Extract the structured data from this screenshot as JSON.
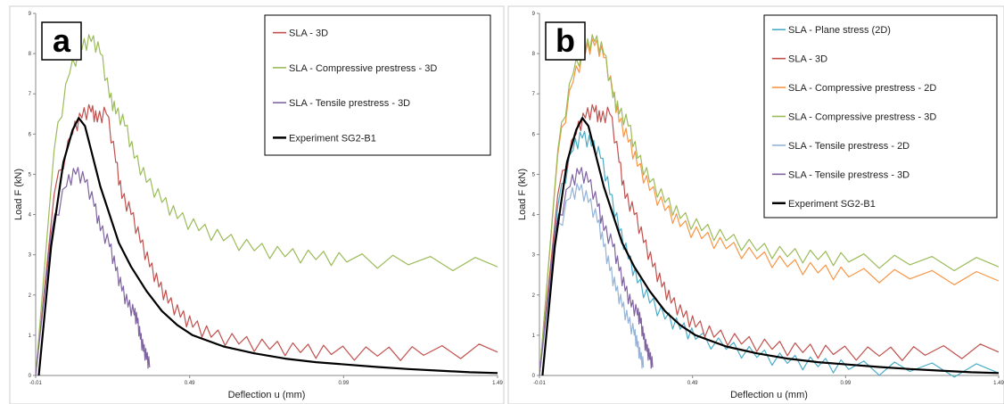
{
  "chart_data": [
    {
      "type": "line",
      "panel_label": "a",
      "xlabel": "Deflection u (mm)",
      "ylabel": "Load F (kN)",
      "xlim": [
        -0.01,
        1.49
      ],
      "ylim": [
        0,
        9
      ],
      "xticks": [
        "-0.01",
        "0.49",
        "0.99",
        "1.49"
      ],
      "yticks": [
        "0",
        "1",
        "2",
        "3",
        "4",
        "5",
        "6",
        "7",
        "8",
        "9"
      ],
      "legend_position": "top-right",
      "grid": false,
      "series": [
        {
          "name": "SLA - 3D",
          "color": "#c0504d",
          "points": [
            [
              -0.01,
              0
            ],
            [
              0.05,
              4.5
            ],
            [
              0.11,
              6.0
            ],
            [
              0.14,
              6.4
            ],
            [
              0.17,
              6.55
            ],
            [
              0.19,
              6.3
            ],
            [
              0.22,
              6.5
            ],
            [
              0.25,
              5.3
            ],
            [
              0.27,
              4.4
            ],
            [
              0.3,
              4.0
            ],
            [
              0.33,
              3.3
            ],
            [
              0.36,
              2.7
            ],
            [
              0.39,
              2.2
            ],
            [
              0.42,
              1.8
            ],
            [
              0.46,
              1.45
            ],
            [
              0.5,
              1.2
            ],
            [
              0.56,
              0.95
            ],
            [
              0.65,
              0.78
            ],
            [
              0.75,
              0.65
            ],
            [
              0.85,
              0.57
            ],
            [
              0.95,
              0.52
            ],
            [
              1.1,
              0.48
            ],
            [
              1.25,
              0.5
            ],
            [
              1.49,
              0.58
            ]
          ]
        },
        {
          "name": "SLA - Compressive prestress - 3D",
          "color": "#9bbb59",
          "points": [
            [
              -0.01,
              0
            ],
            [
              0.05,
              5.6
            ],
            [
              0.1,
              7.5
            ],
            [
              0.14,
              8.1
            ],
            [
              0.17,
              8.3
            ],
            [
              0.2,
              8.0
            ],
            [
              0.23,
              6.9
            ],
            [
              0.25,
              6.5
            ],
            [
              0.28,
              6.2
            ],
            [
              0.31,
              5.4
            ],
            [
              0.35,
              4.8
            ],
            [
              0.4,
              4.3
            ],
            [
              0.45,
              3.9
            ],
            [
              0.52,
              3.6
            ],
            [
              0.6,
              3.35
            ],
            [
              0.7,
              3.1
            ],
            [
              0.8,
              2.95
            ],
            [
              0.9,
              2.88
            ],
            [
              1.0,
              2.82
            ],
            [
              1.2,
              2.75
            ],
            [
              1.49,
              2.7
            ]
          ]
        },
        {
          "name": "SLA - Tensile prestress - 3D",
          "color": "#8064a2",
          "points": [
            [
              -0.01,
              0
            ],
            [
              0.04,
              3.5
            ],
            [
              0.09,
              4.7
            ],
            [
              0.12,
              5.0
            ],
            [
              0.15,
              4.8
            ],
            [
              0.18,
              4.2
            ],
            [
              0.2,
              3.6
            ],
            [
              0.23,
              3.2
            ],
            [
              0.25,
              2.6
            ],
            [
              0.27,
              2.1
            ],
            [
              0.29,
              1.7
            ],
            [
              0.31,
              1.5
            ],
            [
              0.32,
              1.3
            ],
            [
              0.33,
              0.9
            ],
            [
              0.34,
              0.6
            ],
            [
              0.35,
              0.4
            ],
            [
              0.36,
              0.2
            ]
          ]
        },
        {
          "name": "Experiment SG2-B1",
          "color": "#000000",
          "points": [
            [
              0.0,
              0
            ],
            [
              0.04,
              3.2
            ],
            [
              0.08,
              5.3
            ],
            [
              0.11,
              6.1
            ],
            [
              0.13,
              6.4
            ],
            [
              0.15,
              6.2
            ],
            [
              0.17,
              5.6
            ],
            [
              0.2,
              4.7
            ],
            [
              0.23,
              4.0
            ],
            [
              0.26,
              3.3
            ],
            [
              0.3,
              2.7
            ],
            [
              0.35,
              2.1
            ],
            [
              0.4,
              1.6
            ],
            [
              0.45,
              1.25
            ],
            [
              0.5,
              1.0
            ],
            [
              0.6,
              0.72
            ],
            [
              0.7,
              0.55
            ],
            [
              0.8,
              0.42
            ],
            [
              0.9,
              0.33
            ],
            [
              1.0,
              0.27
            ],
            [
              1.1,
              0.21
            ],
            [
              1.2,
              0.16
            ],
            [
              1.3,
              0.12
            ],
            [
              1.4,
              0.08
            ],
            [
              1.49,
              0.06
            ]
          ]
        }
      ]
    },
    {
      "type": "line",
      "panel_label": "b",
      "xlabel": "Deflection u (mm)",
      "ylabel": "Load F (kN)",
      "xlim": [
        -0.01,
        1.49
      ],
      "ylim": [
        0,
        9
      ],
      "xticks": [
        "-0.01",
        "0.49",
        "0.99",
        "1.49"
      ],
      "yticks": [
        "0",
        "1",
        "2",
        "3",
        "4",
        "5",
        "6",
        "7",
        "8",
        "9"
      ],
      "legend_position": "top-right",
      "grid": false,
      "series": [
        {
          "name": "SLA - Plane stress (2D)",
          "color": "#4bacc6",
          "points": [
            [
              -0.01,
              0
            ],
            [
              0.05,
              4.2
            ],
            [
              0.1,
              5.6
            ],
            [
              0.13,
              5.9
            ],
            [
              0.16,
              5.7
            ],
            [
              0.19,
              5.4
            ],
            [
              0.22,
              4.5
            ],
            [
              0.25,
              3.6
            ],
            [
              0.28,
              2.9
            ],
            [
              0.31,
              2.3
            ],
            [
              0.35,
              1.8
            ],
            [
              0.4,
              1.4
            ],
            [
              0.45,
              1.15
            ],
            [
              0.5,
              0.9
            ],
            [
              0.6,
              0.65
            ],
            [
              0.7,
              0.45
            ],
            [
              0.8,
              0.3
            ],
            [
              0.9,
              0.22
            ],
            [
              1.0,
              0.15
            ],
            [
              1.2,
              0.1
            ],
            [
              1.49,
              0.06
            ]
          ]
        },
        {
          "name": "SLA - 3D",
          "color": "#c0504d",
          "points": [
            [
              -0.01,
              0
            ],
            [
              0.05,
              4.5
            ],
            [
              0.11,
              6.0
            ],
            [
              0.14,
              6.4
            ],
            [
              0.17,
              6.55
            ],
            [
              0.19,
              6.3
            ],
            [
              0.22,
              6.5
            ],
            [
              0.25,
              5.3
            ],
            [
              0.27,
              4.4
            ],
            [
              0.3,
              4.0
            ],
            [
              0.33,
              3.3
            ],
            [
              0.36,
              2.7
            ],
            [
              0.39,
              2.2
            ],
            [
              0.42,
              1.8
            ],
            [
              0.46,
              1.45
            ],
            [
              0.5,
              1.2
            ],
            [
              0.56,
              0.95
            ],
            [
              0.65,
              0.78
            ],
            [
              0.75,
              0.65
            ],
            [
              0.85,
              0.57
            ],
            [
              0.95,
              0.52
            ],
            [
              1.1,
              0.48
            ],
            [
              1.25,
              0.5
            ],
            [
              1.49,
              0.58
            ]
          ]
        },
        {
          "name": "SLA - Compressive prestress - 2D",
          "color": "#f79646",
          "points": [
            [
              -0.01,
              0
            ],
            [
              0.05,
              5.5
            ],
            [
              0.1,
              7.3
            ],
            [
              0.14,
              8.0
            ],
            [
              0.17,
              8.2
            ],
            [
              0.2,
              7.9
            ],
            [
              0.23,
              7.0
            ],
            [
              0.25,
              6.3
            ],
            [
              0.28,
              5.8
            ],
            [
              0.31,
              5.2
            ],
            [
              0.35,
              4.6
            ],
            [
              0.4,
              4.1
            ],
            [
              0.45,
              3.7
            ],
            [
              0.52,
              3.4
            ],
            [
              0.6,
              3.15
            ],
            [
              0.7,
              2.9
            ],
            [
              0.8,
              2.7
            ],
            [
              0.9,
              2.55
            ],
            [
              1.0,
              2.45
            ],
            [
              1.2,
              2.4
            ],
            [
              1.49,
              2.35
            ]
          ]
        },
        {
          "name": "SLA - Compressive prestress - 3D",
          "color": "#9bbb59",
          "points": [
            [
              -0.01,
              0
            ],
            [
              0.05,
              5.6
            ],
            [
              0.1,
              7.5
            ],
            [
              0.14,
              8.1
            ],
            [
              0.17,
              8.3
            ],
            [
              0.2,
              8.0
            ],
            [
              0.23,
              6.9
            ],
            [
              0.25,
              6.5
            ],
            [
              0.28,
              6.2
            ],
            [
              0.31,
              5.4
            ],
            [
              0.35,
              4.8
            ],
            [
              0.4,
              4.3
            ],
            [
              0.45,
              3.9
            ],
            [
              0.52,
              3.6
            ],
            [
              0.6,
              3.35
            ],
            [
              0.7,
              3.1
            ],
            [
              0.8,
              2.95
            ],
            [
              0.9,
              2.88
            ],
            [
              1.0,
              2.82
            ],
            [
              1.2,
              2.75
            ],
            [
              1.49,
              2.7
            ]
          ]
        },
        {
          "name": "SLA - Tensile prestress - 2D",
          "color": "#95b3d7",
          "points": [
            [
              -0.01,
              0
            ],
            [
              0.04,
              3.3
            ],
            [
              0.09,
              4.4
            ],
            [
              0.12,
              4.6
            ],
            [
              0.15,
              4.3
            ],
            [
              0.18,
              3.8
            ],
            [
              0.2,
              3.2
            ],
            [
              0.22,
              2.6
            ],
            [
              0.24,
              2.1
            ],
            [
              0.26,
              1.7
            ],
            [
              0.28,
              1.3
            ],
            [
              0.3,
              1.0
            ],
            [
              0.31,
              0.7
            ],
            [
              0.32,
              0.4
            ],
            [
              0.33,
              0.2
            ]
          ]
        },
        {
          "name": "SLA - Tensile prestress - 3D",
          "color": "#8064a2",
          "points": [
            [
              -0.01,
              0
            ],
            [
              0.04,
              3.5
            ],
            [
              0.09,
              4.7
            ],
            [
              0.12,
              5.0
            ],
            [
              0.15,
              4.8
            ],
            [
              0.18,
              4.2
            ],
            [
              0.2,
              3.6
            ],
            [
              0.23,
              3.2
            ],
            [
              0.25,
              2.6
            ],
            [
              0.27,
              2.1
            ],
            [
              0.29,
              1.7
            ],
            [
              0.31,
              1.5
            ],
            [
              0.32,
              1.3
            ],
            [
              0.33,
              0.9
            ],
            [
              0.34,
              0.6
            ],
            [
              0.35,
              0.4
            ],
            [
              0.36,
              0.2
            ]
          ]
        },
        {
          "name": "Experiment SG2-B1",
          "color": "#000000",
          "points": [
            [
              0.0,
              0
            ],
            [
              0.04,
              3.2
            ],
            [
              0.08,
              5.3
            ],
            [
              0.11,
              6.1
            ],
            [
              0.13,
              6.4
            ],
            [
              0.15,
              6.2
            ],
            [
              0.17,
              5.6
            ],
            [
              0.2,
              4.7
            ],
            [
              0.23,
              4.0
            ],
            [
              0.26,
              3.3
            ],
            [
              0.3,
              2.7
            ],
            [
              0.35,
              2.1
            ],
            [
              0.4,
              1.6
            ],
            [
              0.45,
              1.25
            ],
            [
              0.5,
              1.0
            ],
            [
              0.6,
              0.72
            ],
            [
              0.7,
              0.55
            ],
            [
              0.8,
              0.42
            ],
            [
              0.9,
              0.33
            ],
            [
              1.0,
              0.27
            ],
            [
              1.1,
              0.21
            ],
            [
              1.2,
              0.16
            ],
            [
              1.3,
              0.12
            ],
            [
              1.4,
              0.08
            ],
            [
              1.49,
              0.06
            ]
          ]
        }
      ]
    }
  ]
}
